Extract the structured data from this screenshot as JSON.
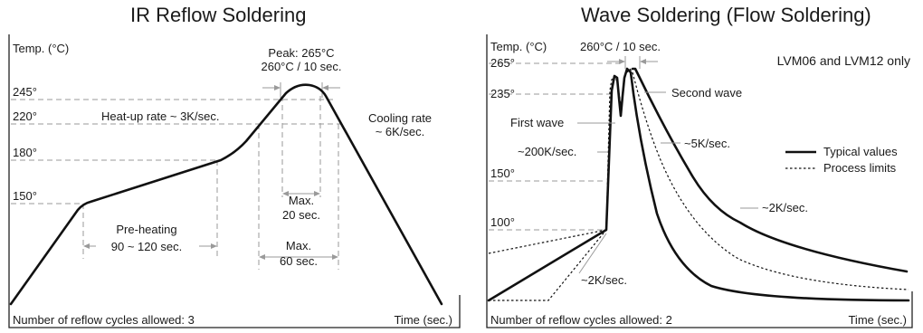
{
  "ir": {
    "title": "IR Reflow Soldering",
    "ylabel": "Temp. (°C)",
    "xlabel": "Time (sec.)",
    "cycles": "Number of reflow cycles allowed: 3",
    "ticks": [
      "245°",
      "220°",
      "180°",
      "150°"
    ],
    "peak_line1": "Peak: 265°C",
    "peak_line2": "260°C / 10 sec.",
    "heatup": "Heat-up rate ~ 3K/sec.",
    "cooling_line1": "Cooling rate",
    "cooling_line2": "~ 6K/sec.",
    "preheat_line1": "Pre-heating",
    "preheat_line2": "90 ~ 120 sec.",
    "max20_line1": "Max.",
    "max20_line2": "20 sec.",
    "max60_line1": "Max.",
    "max60_line2": "60 sec."
  },
  "wave": {
    "title": "Wave Soldering (Flow Soldering)",
    "ylabel": "Temp. (°C)",
    "xlabel": "Time (sec.)",
    "cycles": "Number of reflow cycles allowed: 2",
    "ticks": [
      "265°",
      "235°",
      "150°",
      "100°"
    ],
    "peak_note": "260°C / 10 sec.",
    "only_note": "LVM06 and LVM12 only",
    "first_wave": "First wave",
    "second_wave": "Second wave",
    "rate_200": "~200K/sec.",
    "rate_5": "~5K/sec.",
    "rate_2_upper": "~2K/sec.",
    "rate_2_lower": "~2K/sec.",
    "legend_typical": "Typical values",
    "legend_limits": "Process limits"
  }
}
